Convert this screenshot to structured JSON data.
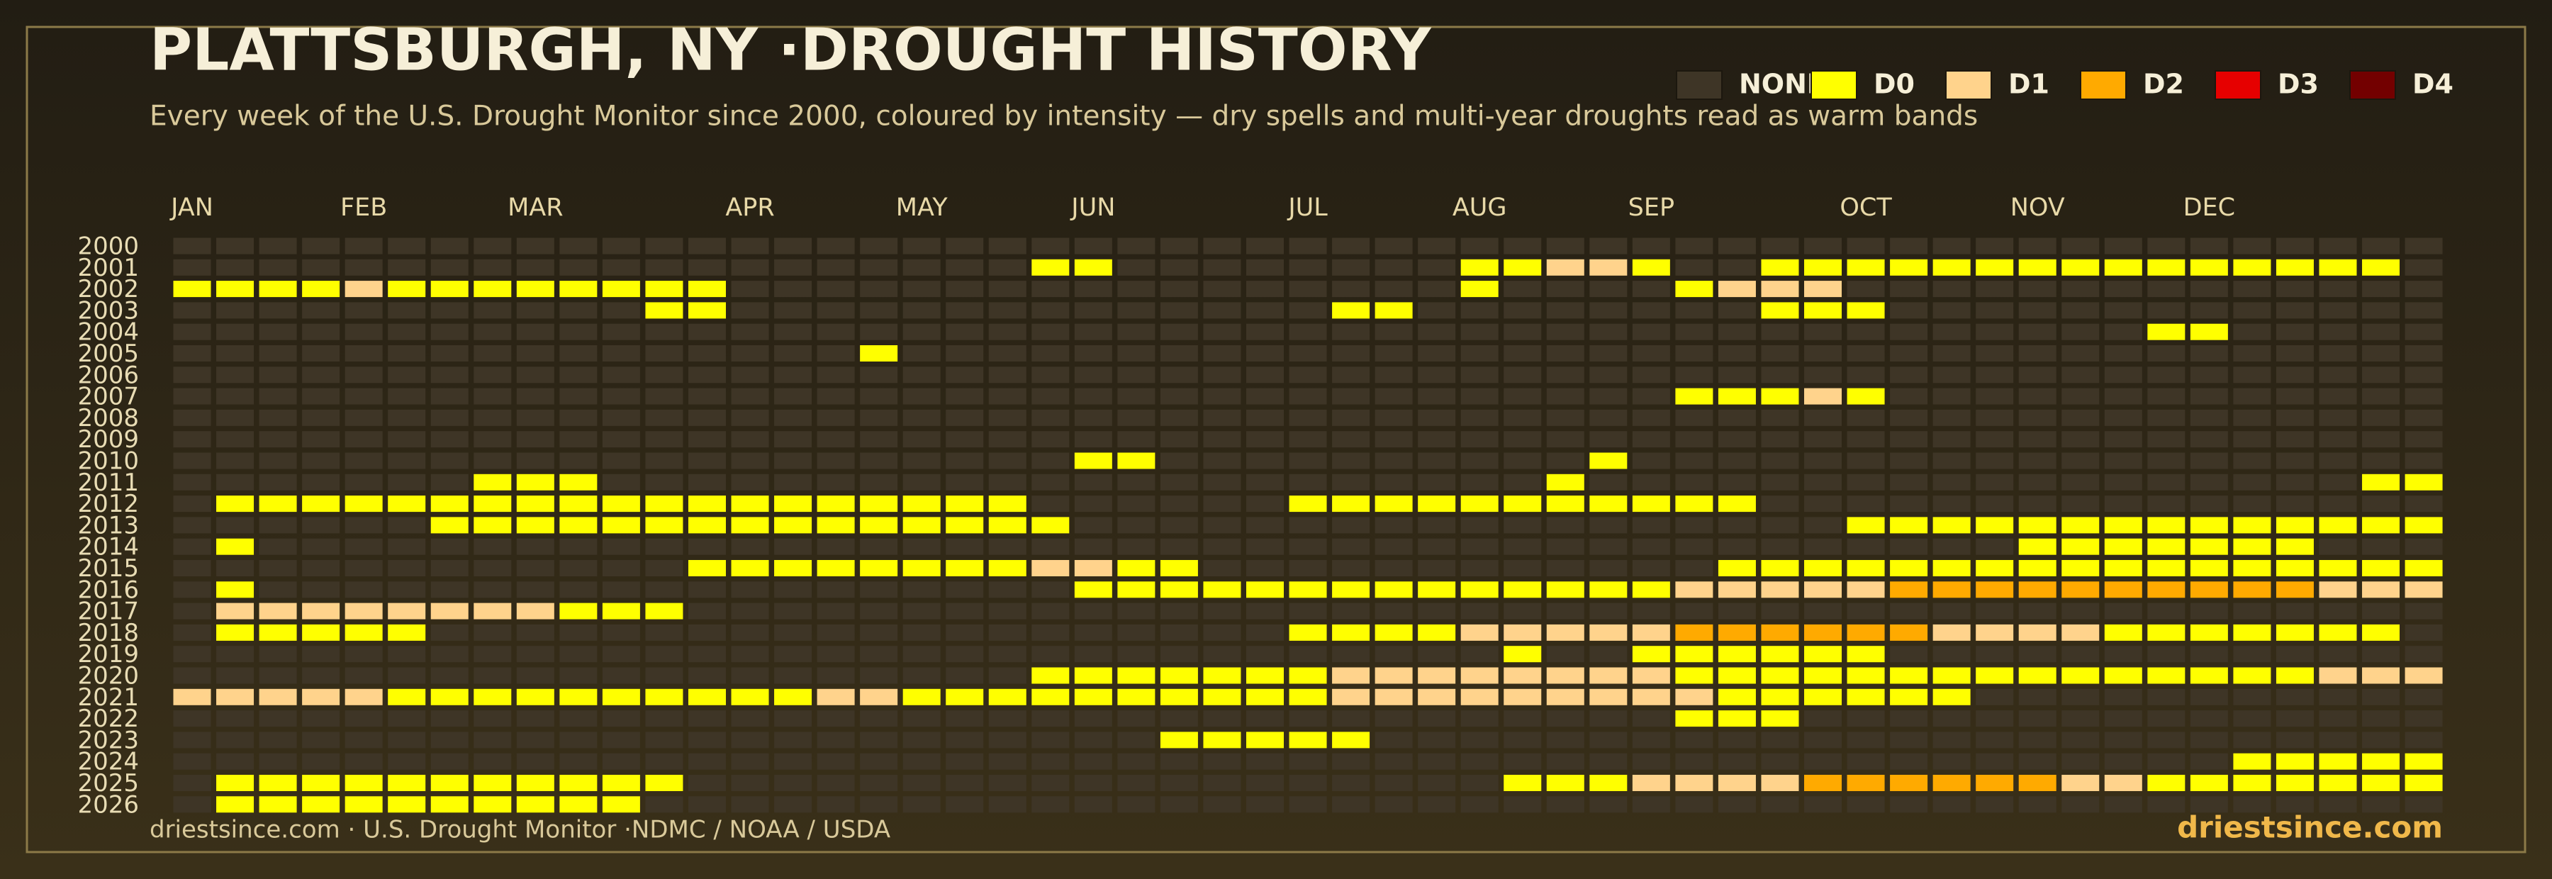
{
  "chart_data": {
    "type": "heatmap",
    "title": "PLATTSBURGH, NY ·DROUGHT HISTORY",
    "subtitle": "Every week of the U.S. Drought Monitor since 2000, coloured by intensity — dry spells and multi-year droughts read as warm bands",
    "levels": [
      {
        "name": "NONE",
        "color": "#3e3526"
      },
      {
        "name": "D0",
        "color": "#ffff00"
      },
      {
        "name": "D1",
        "color": "#ffd38c"
      },
      {
        "name": "D2",
        "color": "#ffaa00"
      },
      {
        "name": "D3",
        "color": "#e60000"
      },
      {
        "name": "D4",
        "color": "#730000"
      }
    ],
    "x": [
      "JAN",
      null,
      null,
      null,
      "FEB",
      null,
      null,
      null,
      "MAR",
      null,
      null,
      null,
      null,
      "APR",
      null,
      null,
      null,
      "MAY",
      null,
      null,
      null,
      "JUN",
      null,
      null,
      null,
      null,
      "JUL",
      null,
      null,
      null,
      "AUG",
      null,
      null,
      null,
      "SEP",
      null,
      null,
      null,
      null,
      "OCT",
      null,
      null,
      null,
      "NOV",
      null,
      null,
      null,
      "DEC",
      null,
      null,
      null,
      null,
      null
    ],
    "y": [
      "2000",
      "2001",
      "2002",
      "2003",
      "2004",
      "2005",
      "2006",
      "2007",
      "2008",
      "2009",
      "2010",
      "2011",
      "2012",
      "2013",
      "2014",
      "2015",
      "2016",
      "2017",
      "2018",
      "2019",
      "2020",
      "2021",
      "2022",
      "2023",
      "2024",
      "2025",
      "2026"
    ],
    "values": [
      [
        0,
        0,
        0,
        0,
        0,
        0,
        0,
        0,
        0,
        0,
        0,
        0,
        0,
        0,
        0,
        0,
        0,
        0,
        0,
        0,
        0,
        0,
        0,
        0,
        0,
        0,
        0,
        0,
        0,
        0,
        0,
        0,
        0,
        0,
        0,
        0,
        0,
        0,
        0,
        0,
        0,
        0,
        0,
        0,
        0,
        0,
        0,
        0,
        0,
        0,
        0,
        0,
        0
      ],
      [
        0,
        0,
        0,
        0,
        0,
        0,
        0,
        0,
        0,
        0,
        0,
        0,
        0,
        0,
        0,
        0,
        0,
        0,
        0,
        0,
        1,
        1,
        0,
        0,
        0,
        0,
        0,
        0,
        0,
        0,
        1,
        1,
        2,
        2,
        1,
        0,
        0,
        1,
        1,
        1,
        1,
        1,
        1,
        1,
        1,
        1,
        1,
        1,
        1,
        1,
        1,
        1,
        0
      ],
      [
        1,
        1,
        1,
        1,
        2,
        1,
        1,
        1,
        1,
        1,
        1,
        1,
        1,
        0,
        0,
        0,
        0,
        0,
        0,
        0,
        0,
        0,
        0,
        0,
        0,
        0,
        0,
        0,
        0,
        0,
        1,
        0,
        0,
        0,
        0,
        1,
        2,
        2,
        2,
        0,
        0,
        0,
        0,
        0,
        0,
        0,
        0,
        0,
        0,
        0,
        0,
        0,
        0
      ],
      [
        0,
        0,
        0,
        0,
        0,
        0,
        0,
        0,
        0,
        0,
        0,
        1,
        1,
        0,
        0,
        0,
        0,
        0,
        0,
        0,
        0,
        0,
        0,
        0,
        0,
        0,
        0,
        1,
        1,
        0,
        0,
        0,
        0,
        0,
        0,
        0,
        0,
        1,
        1,
        1,
        0,
        0,
        0,
        0,
        0,
        0,
        0,
        0,
        0,
        0,
        0,
        0,
        0
      ],
      [
        0,
        0,
        0,
        0,
        0,
        0,
        0,
        0,
        0,
        0,
        0,
        0,
        0,
        0,
        0,
        0,
        0,
        0,
        0,
        0,
        0,
        0,
        0,
        0,
        0,
        0,
        0,
        0,
        0,
        0,
        0,
        0,
        0,
        0,
        0,
        0,
        0,
        0,
        0,
        0,
        0,
        0,
        0,
        0,
        0,
        0,
        1,
        1,
        0,
        0,
        0,
        0,
        0
      ],
      [
        0,
        0,
        0,
        0,
        0,
        0,
        0,
        0,
        0,
        0,
        0,
        0,
        0,
        0,
        0,
        0,
        1,
        0,
        0,
        0,
        0,
        0,
        0,
        0,
        0,
        0,
        0,
        0,
        0,
        0,
        0,
        0,
        0,
        0,
        0,
        0,
        0,
        0,
        0,
        0,
        0,
        0,
        0,
        0,
        0,
        0,
        0,
        0,
        0,
        0,
        0,
        0,
        0
      ],
      [
        0,
        0,
        0,
        0,
        0,
        0,
        0,
        0,
        0,
        0,
        0,
        0,
        0,
        0,
        0,
        0,
        0,
        0,
        0,
        0,
        0,
        0,
        0,
        0,
        0,
        0,
        0,
        0,
        0,
        0,
        0,
        0,
        0,
        0,
        0,
        0,
        0,
        0,
        0,
        0,
        0,
        0,
        0,
        0,
        0,
        0,
        0,
        0,
        0,
        0,
        0,
        0,
        0
      ],
      [
        0,
        0,
        0,
        0,
        0,
        0,
        0,
        0,
        0,
        0,
        0,
        0,
        0,
        0,
        0,
        0,
        0,
        0,
        0,
        0,
        0,
        0,
        0,
        0,
        0,
        0,
        0,
        0,
        0,
        0,
        0,
        0,
        0,
        0,
        0,
        1,
        1,
        1,
        2,
        1,
        0,
        0,
        0,
        0,
        0,
        0,
        0,
        0,
        0,
        0,
        0,
        0,
        0
      ],
      [
        0,
        0,
        0,
        0,
        0,
        0,
        0,
        0,
        0,
        0,
        0,
        0,
        0,
        0,
        0,
        0,
        0,
        0,
        0,
        0,
        0,
        0,
        0,
        0,
        0,
        0,
        0,
        0,
        0,
        0,
        0,
        0,
        0,
        0,
        0,
        0,
        0,
        0,
        0,
        0,
        0,
        0,
        0,
        0,
        0,
        0,
        0,
        0,
        0,
        0,
        0,
        0,
        0
      ],
      [
        0,
        0,
        0,
        0,
        0,
        0,
        0,
        0,
        0,
        0,
        0,
        0,
        0,
        0,
        0,
        0,
        0,
        0,
        0,
        0,
        0,
        0,
        0,
        0,
        0,
        0,
        0,
        0,
        0,
        0,
        0,
        0,
        0,
        0,
        0,
        0,
        0,
        0,
        0,
        0,
        0,
        0,
        0,
        0,
        0,
        0,
        0,
        0,
        0,
        0,
        0,
        0,
        0
      ],
      [
        0,
        0,
        0,
        0,
        0,
        0,
        0,
        0,
        0,
        0,
        0,
        0,
        0,
        0,
        0,
        0,
        0,
        0,
        0,
        0,
        0,
        1,
        1,
        0,
        0,
        0,
        0,
        0,
        0,
        0,
        0,
        0,
        0,
        1,
        0,
        0,
        0,
        0,
        0,
        0,
        0,
        0,
        0,
        0,
        0,
        0,
        0,
        0,
        0,
        0,
        0,
        0,
        0
      ],
      [
        0,
        0,
        0,
        0,
        0,
        0,
        0,
        1,
        1,
        1,
        0,
        0,
        0,
        0,
        0,
        0,
        0,
        0,
        0,
        0,
        0,
        0,
        0,
        0,
        0,
        0,
        0,
        0,
        0,
        0,
        0,
        0,
        1,
        0,
        0,
        0,
        0,
        0,
        0,
        0,
        0,
        0,
        0,
        0,
        0,
        0,
        0,
        0,
        0,
        0,
        0,
        1,
        1
      ],
      [
        0,
        1,
        1,
        1,
        1,
        1,
        1,
        1,
        1,
        1,
        1,
        1,
        1,
        1,
        1,
        1,
        1,
        1,
        1,
        1,
        0,
        0,
        0,
        0,
        0,
        0,
        1,
        1,
        1,
        1,
        1,
        1,
        1,
        1,
        1,
        1,
        1,
        0,
        0,
        0,
        0,
        0,
        0,
        0,
        0,
        0,
        0,
        0,
        0,
        0,
        0,
        0,
        0
      ],
      [
        0,
        0,
        0,
        0,
        0,
        0,
        1,
        1,
        1,
        1,
        1,
        1,
        1,
        1,
        1,
        1,
        1,
        1,
        1,
        1,
        1,
        0,
        0,
        0,
        0,
        0,
        0,
        0,
        0,
        0,
        0,
        0,
        0,
        0,
        0,
        0,
        0,
        0,
        0,
        1,
        1,
        1,
        1,
        1,
        1,
        1,
        1,
        1,
        1,
        1,
        1,
        1,
        1
      ],
      [
        0,
        1,
        0,
        0,
        0,
        0,
        0,
        0,
        0,
        0,
        0,
        0,
        0,
        0,
        0,
        0,
        0,
        0,
        0,
        0,
        0,
        0,
        0,
        0,
        0,
        0,
        0,
        0,
        0,
        0,
        0,
        0,
        0,
        0,
        0,
        0,
        0,
        0,
        0,
        0,
        0,
        0,
        0,
        1,
        1,
        1,
        1,
        1,
        1,
        1,
        0,
        0,
        0
      ],
      [
        0,
        0,
        0,
        0,
        0,
        0,
        0,
        0,
        0,
        0,
        0,
        0,
        1,
        1,
        1,
        1,
        1,
        1,
        1,
        1,
        2,
        2,
        1,
        1,
        0,
        0,
        0,
        0,
        0,
        0,
        0,
        0,
        0,
        0,
        0,
        0,
        1,
        1,
        1,
        1,
        1,
        1,
        1,
        1,
        1,
        1,
        1,
        1,
        1,
        1,
        1,
        1,
        1
      ],
      [
        0,
        1,
        0,
        0,
        0,
        0,
        0,
        0,
        0,
        0,
        0,
        0,
        0,
        0,
        0,
        0,
        0,
        0,
        0,
        0,
        0,
        1,
        1,
        1,
        1,
        1,
        1,
        1,
        1,
        1,
        1,
        1,
        1,
        1,
        1,
        2,
        2,
        2,
        2,
        2,
        3,
        3,
        3,
        3,
        3,
        3,
        3,
        3,
        3,
        3,
        2,
        2,
        2
      ],
      [
        0,
        2,
        2,
        2,
        2,
        2,
        2,
        2,
        2,
        1,
        1,
        1,
        0,
        0,
        0,
        0,
        0,
        0,
        0,
        0,
        0,
        0,
        0,
        0,
        0,
        0,
        0,
        0,
        0,
        0,
        0,
        0,
        0,
        0,
        0,
        0,
        0,
        0,
        0,
        0,
        0,
        0,
        0,
        0,
        0,
        0,
        0,
        0,
        0,
        0,
        0,
        0,
        0
      ],
      [
        0,
        1,
        1,
        1,
        1,
        1,
        0,
        0,
        0,
        0,
        0,
        0,
        0,
        0,
        0,
        0,
        0,
        0,
        0,
        0,
        0,
        0,
        0,
        0,
        0,
        0,
        1,
        1,
        1,
        1,
        2,
        2,
        2,
        2,
        2,
        3,
        3,
        3,
        3,
        3,
        3,
        2,
        2,
        2,
        2,
        1,
        1,
        1,
        1,
        1,
        1,
        1,
        0
      ],
      [
        0,
        0,
        0,
        0,
        0,
        0,
        0,
        0,
        0,
        0,
        0,
        0,
        0,
        0,
        0,
        0,
        0,
        0,
        0,
        0,
        0,
        0,
        0,
        0,
        0,
        0,
        0,
        0,
        0,
        0,
        0,
        1,
        0,
        0,
        1,
        1,
        1,
        1,
        1,
        1,
        0,
        0,
        0,
        0,
        0,
        0,
        0,
        0,
        0,
        0,
        0,
        0,
        0
      ],
      [
        0,
        0,
        0,
        0,
        0,
        0,
        0,
        0,
        0,
        0,
        0,
        0,
        0,
        0,
        0,
        0,
        0,
        0,
        0,
        0,
        1,
        1,
        1,
        1,
        1,
        1,
        1,
        2,
        2,
        2,
        2,
        2,
        2,
        2,
        2,
        1,
        1,
        1,
        1,
        1,
        1,
        1,
        1,
        1,
        1,
        1,
        1,
        1,
        1,
        1,
        2,
        2,
        2
      ],
      [
        2,
        2,
        2,
        2,
        2,
        1,
        1,
        1,
        1,
        1,
        1,
        1,
        1,
        1,
        1,
        2,
        2,
        1,
        1,
        1,
        1,
        1,
        1,
        1,
        1,
        1,
        1,
        2,
        2,
        2,
        2,
        2,
        2,
        2,
        2,
        2,
        1,
        1,
        1,
        1,
        1,
        1,
        0,
        0,
        0,
        0,
        0,
        0,
        0,
        0,
        0,
        0,
        0
      ],
      [
        0,
        0,
        0,
        0,
        0,
        0,
        0,
        0,
        0,
        0,
        0,
        0,
        0,
        0,
        0,
        0,
        0,
        0,
        0,
        0,
        0,
        0,
        0,
        0,
        0,
        0,
        0,
        0,
        0,
        0,
        0,
        0,
        0,
        0,
        0,
        1,
        1,
        1,
        0,
        0,
        0,
        0,
        0,
        0,
        0,
        0,
        0,
        0,
        0,
        0,
        0,
        0,
        0
      ],
      [
        0,
        0,
        0,
        0,
        0,
        0,
        0,
        0,
        0,
        0,
        0,
        0,
        0,
        0,
        0,
        0,
        0,
        0,
        0,
        0,
        0,
        0,
        0,
        1,
        1,
        1,
        1,
        1,
        0,
        0,
        0,
        0,
        0,
        0,
        0,
        0,
        0,
        0,
        0,
        0,
        0,
        0,
        0,
        0,
        0,
        0,
        0,
        0,
        0,
        0,
        0,
        0,
        0
      ],
      [
        0,
        0,
        0,
        0,
        0,
        0,
        0,
        0,
        0,
        0,
        0,
        0,
        0,
        0,
        0,
        0,
        0,
        0,
        0,
        0,
        0,
        0,
        0,
        0,
        0,
        0,
        0,
        0,
        0,
        0,
        0,
        0,
        0,
        0,
        0,
        0,
        0,
        0,
        0,
        0,
        0,
        0,
        0,
        0,
        0,
        0,
        0,
        0,
        1,
        1,
        1,
        1,
        1
      ],
      [
        0,
        1,
        1,
        1,
        1,
        1,
        1,
        1,
        1,
        1,
        1,
        1,
        0,
        0,
        0,
        0,
        0,
        0,
        0,
        0,
        0,
        0,
        0,
        0,
        0,
        0,
        0,
        0,
        0,
        0,
        0,
        1,
        1,
        1,
        2,
        2,
        2,
        2,
        3,
        3,
        3,
        3,
        3,
        3,
        2,
        2,
        1,
        1,
        1,
        1,
        1,
        1,
        1
      ],
      [
        0,
        1,
        1,
        1,
        1,
        1,
        1,
        1,
        1,
        1,
        1,
        0,
        0,
        0,
        0,
        0,
        0,
        0,
        0,
        0,
        0,
        0,
        0,
        0,
        0,
        0,
        0,
        0,
        0,
        0,
        0,
        0,
        0,
        0,
        0,
        0,
        0,
        0,
        0,
        0,
        0,
        0,
        0,
        0,
        0,
        0,
        0,
        0,
        0,
        0,
        0,
        0,
        0
      ]
    ],
    "source": "driestsince.com  · U.S. Drought Monitor ·NDMC / NOAA / USDA",
    "credit": "driestsince.com"
  }
}
